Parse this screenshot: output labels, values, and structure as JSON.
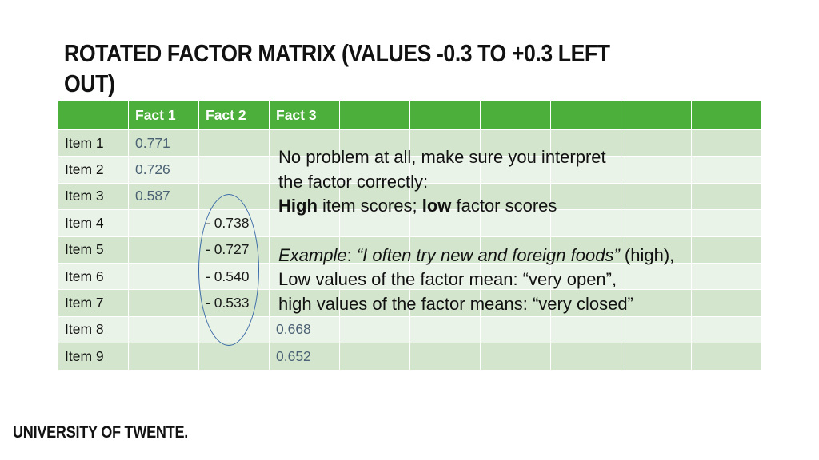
{
  "title": "ROTATED FACTOR MATRIX (VALUES -0.3 TO +0.3 LEFT OUT)",
  "table": {
    "headers": [
      "",
      "Fact 1",
      "Fact 2",
      "Fact 3",
      "",
      "",
      "",
      "",
      "",
      ""
    ],
    "rows": [
      {
        "label": "Item 1",
        "f1": "0.771",
        "f2": "",
        "f3": ""
      },
      {
        "label": "Item 2",
        "f1": "0.726",
        "f2": "",
        "f3": ""
      },
      {
        "label": "Item 3",
        "f1": "0.587",
        "f2": "",
        "f3": ""
      },
      {
        "label": "Item 4",
        "f1": "",
        "f2": "- 0.738",
        "f3": ""
      },
      {
        "label": "Item 5",
        "f1": "",
        "f2": "- 0.727",
        "f3": ""
      },
      {
        "label": "Item 6",
        "f1": "",
        "f2": "- 0.540",
        "f3": ""
      },
      {
        "label": "Item 7",
        "f1": "",
        "f2": "- 0.533",
        "f3": ""
      },
      {
        "label": "Item 8",
        "f1": "",
        "f2": "",
        "f3": "0.668"
      },
      {
        "label": "Item 9",
        "f1": "",
        "f2": "",
        "f3": "0.652"
      }
    ]
  },
  "note": {
    "line1": "No problem at all, make sure you interpret",
    "line2": "the factor correctly:",
    "line3_bold1": "High",
    "line3_mid": " item scores; ",
    "line3_bold2": "low",
    "line3_end": " factor scores",
    "example_label": "Example",
    "example_colon": ": ",
    "example_quote": "“I often try new and foreign foods”",
    "example_end": " (high),",
    "line5": "Low values of the factor mean: “very open”,",
    "line6": "high values of the factor means: “very closed”"
  },
  "footer": "UNIVERSITY OF TWENTE."
}
